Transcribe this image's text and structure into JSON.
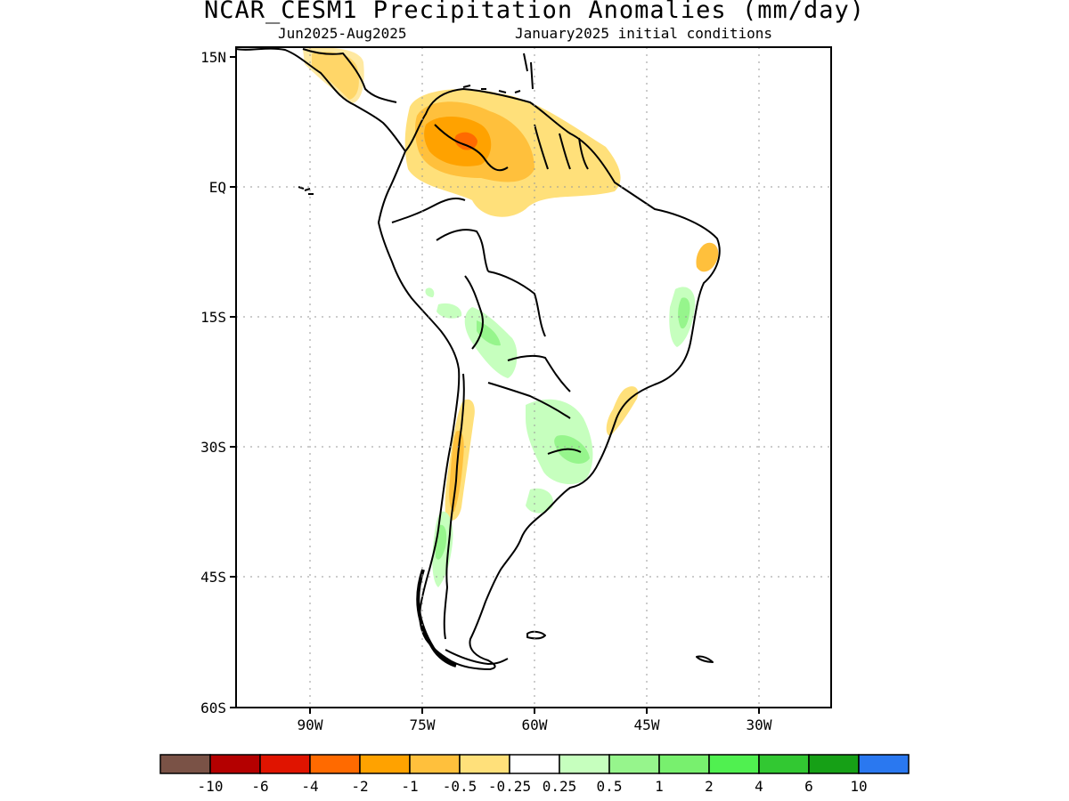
{
  "title": "NCAR_CESM1 Precipitation Anomalies (mm/day)",
  "subtitle_period": "Jun2025-Aug2025",
  "subtitle_ic": "January2025 initial conditions",
  "lat_labels": [
    "15N",
    "EQ",
    "15S",
    "30S",
    "45S",
    "60S"
  ],
  "lon_labels": [
    "90W",
    "75W",
    "60W",
    "45W",
    "30W"
  ],
  "colorbar": {
    "colors": [
      "#7a5246",
      "#b40000",
      "#e01400",
      "#ff6a00",
      "#ffa200",
      "#ffc03c",
      "#ffe07a",
      "#ffffff",
      "#c6ffbe",
      "#96f58c",
      "#78f06e",
      "#50f050",
      "#32c832",
      "#16a016",
      "#2a78f0"
    ],
    "tick_labels": [
      "-10",
      "-6",
      "-4",
      "-2",
      "-1",
      "-0.5",
      "-0.25",
      "0.25",
      "0.5",
      "1",
      "2",
      "4",
      "6",
      "10"
    ]
  },
  "map_extent": {
    "lon": [
      -100,
      -20
    ],
    "lat": [
      -60,
      15
    ]
  }
}
